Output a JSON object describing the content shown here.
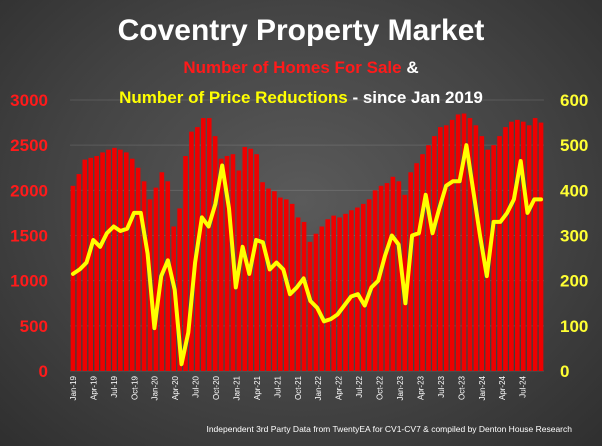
{
  "chart_data": {
    "type": "bar",
    "title": "Coventry Property Market",
    "subtitle_parts": [
      {
        "text": "Number of Homes For Sale",
        "color": "#ff1a1a"
      },
      {
        "text": " &",
        "color": "#ffffff"
      }
    ],
    "subtitle2_parts": [
      {
        "text": "Number of Price Reductions",
        "color": "#ffff00"
      },
      {
        "text": " - since Jan 2019",
        "color": "#ffffff"
      }
    ],
    "footer": "Independent 3rd Party Data from TwentyEA for CV1-CV7 & compiled by Denton House Research",
    "x_tick_labels": [
      "Jan-19",
      "Apr-19",
      "Jul-19",
      "Oct-19",
      "Jan-20",
      "Apr-20",
      "Jul-20",
      "Oct-20",
      "Jan-21",
      "Apr-21",
      "Jul-21",
      "Oct-21",
      "Jan-22",
      "Apr-22",
      "Jul-22",
      "Oct-22",
      "Jan-23",
      "Apr-23",
      "Jul-23",
      "Oct-23",
      "Jan-24",
      "Apr-24",
      "Jul-24"
    ],
    "y_left": {
      "ticks": [
        0,
        500,
        1000,
        1500,
        2000,
        2500,
        3000
      ],
      "range": [
        0,
        3000
      ]
    },
    "y_right": {
      "ticks": [
        0,
        100,
        200,
        300,
        400,
        500,
        600
      ],
      "range": [
        0,
        600
      ]
    },
    "series": [
      {
        "name": "Number of Homes For Sale",
        "type": "bar",
        "axis": "left",
        "color": "#ee0000",
        "values": [
          2050,
          2180,
          2340,
          2360,
          2380,
          2420,
          2450,
          2470,
          2450,
          2420,
          2350,
          2250,
          2100,
          1900,
          2030,
          2200,
          2100,
          1600,
          1800,
          2380,
          2650,
          2700,
          2800,
          2800,
          2600,
          2350,
          2380,
          2400,
          2220,
          2480,
          2460,
          2400,
          2090,
          2020,
          1990,
          1920,
          1900,
          1850,
          1700,
          1650,
          1430,
          1520,
          1600,
          1680,
          1720,
          1700,
          1740,
          1780,
          1810,
          1850,
          1900,
          2000,
          2050,
          2080,
          2150,
          2100,
          1950,
          2200,
          2300,
          2400,
          2500,
          2600,
          2700,
          2720,
          2780,
          2840,
          2850,
          2800,
          2720,
          2600,
          2450,
          2500,
          2600,
          2700,
          2760,
          2780,
          2760,
          2720,
          2800,
          2750
        ]
      },
      {
        "name": "Number of Price Reductions",
        "type": "line",
        "axis": "right",
        "color": "#ffff00",
        "values": [
          215,
          225,
          240,
          290,
          275,
          305,
          320,
          310,
          315,
          350,
          350,
          260,
          95,
          210,
          245,
          180,
          15,
          85,
          240,
          340,
          320,
          370,
          455,
          360,
          185,
          275,
          215,
          290,
          285,
          225,
          240,
          225,
          170,
          185,
          205,
          155,
          140,
          110,
          115,
          125,
          145,
          165,
          170,
          145,
          185,
          200,
          255,
          300,
          280,
          150,
          300,
          305,
          390,
          305,
          360,
          410,
          420,
          420,
          500,
          400,
          300,
          210,
          330,
          330,
          350,
          380,
          465,
          350,
          380,
          380
        ]
      }
    ]
  }
}
